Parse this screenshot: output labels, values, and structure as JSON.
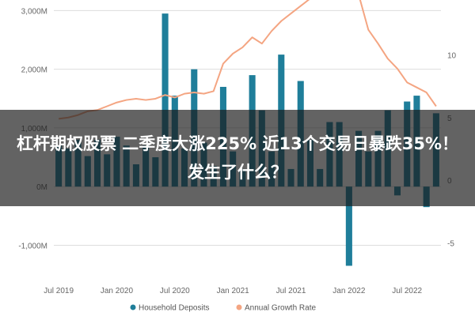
{
  "headline": "杠杆期权股票 二季度大涨225% 近13个交易日暴跌35%！发生了什么？",
  "chart_data": {
    "type": "bar",
    "series": [
      {
        "name": "Household Deposits",
        "type": "bar",
        "axis": "left",
        "color": "#1f7e9a",
        "values": [
          700,
          650,
          800,
          520,
          800,
          550,
          850,
          700,
          380,
          700,
          500,
          2950,
          1550,
          650,
          2000,
          750,
          350,
          1700,
          600,
          300,
          1900,
          1300,
          600,
          2250,
          300,
          1800,
          800,
          300,
          1100,
          1100,
          -1350,
          950,
          600,
          950,
          1300,
          -150,
          1450,
          1550,
          -350,
          1250
        ]
      },
      {
        "name": "Annual Growth Rate",
        "type": "line",
        "axis": "right",
        "color": "#f4a582",
        "values": [
          4.9,
          5.0,
          5.2,
          5.5,
          5.6,
          5.9,
          6.2,
          6.4,
          6.5,
          6.4,
          6.5,
          6.8,
          6.6,
          6.9,
          7.0,
          6.9,
          7.1,
          9.3,
          10.1,
          10.6,
          11.4,
          10.9,
          11.9,
          12.7,
          13.3,
          13.9,
          14.5,
          15.3,
          15.8,
          16.2,
          16.1,
          14.8,
          12.0,
          10.9,
          9.7,
          8.9,
          7.8,
          7.4,
          7.0,
          5.9
        ]
      }
    ],
    "x_ticks": [
      "Jul 2019",
      "Jan 2020",
      "Jul 2020",
      "Jan 2021",
      "Jul 2021",
      "Jan 2022",
      "Jul 2022"
    ],
    "y_left_ticks": [
      "3,000M",
      "2,000M",
      "1,000M",
      "0M",
      "-1,000M"
    ],
    "y_left_values": [
      3000,
      2000,
      1000,
      0,
      -1000
    ],
    "y_right_ticks": [
      "10",
      "5",
      "0",
      "-5"
    ],
    "y_right_values": [
      10,
      5,
      0,
      -5
    ],
    "ylim_left": [
      -1600,
      3100
    ],
    "ylim_right": [
      -8,
      14
    ],
    "grid": true,
    "legend_position": "bottom-center"
  }
}
